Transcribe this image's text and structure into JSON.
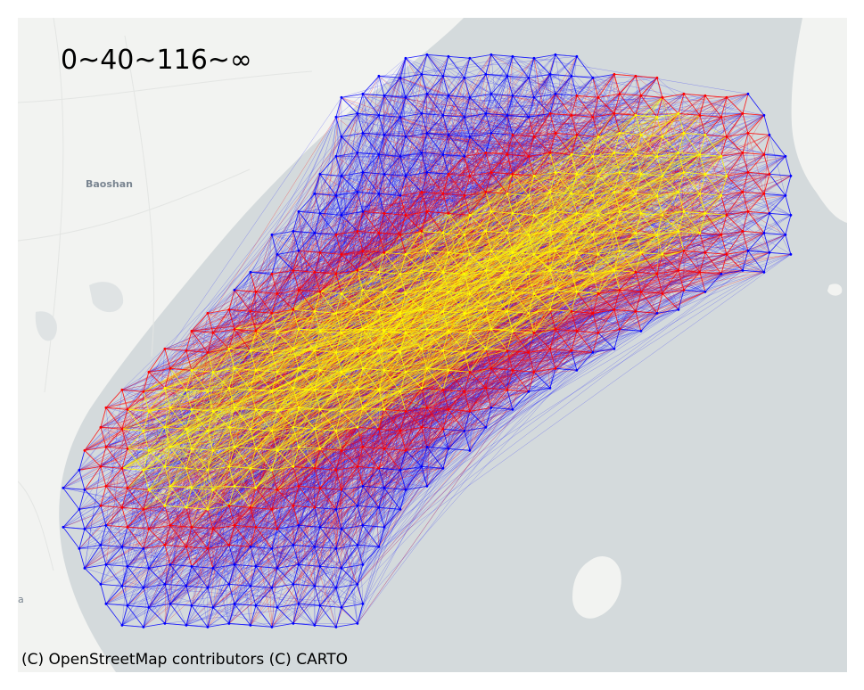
{
  "legend": {
    "range_label": "0~40~116~∞"
  },
  "basemap": {
    "attribution": "(C) OpenStreetMap contributors (C) CARTO",
    "place_labels": {
      "baoshan": "Baoshan",
      "partial": "a"
    }
  },
  "colors": {
    "land": "#f2f3f1",
    "water": "#d4dadc",
    "low": "#0000ff",
    "mid": "#ff0000",
    "high": "#ffff00"
  }
}
